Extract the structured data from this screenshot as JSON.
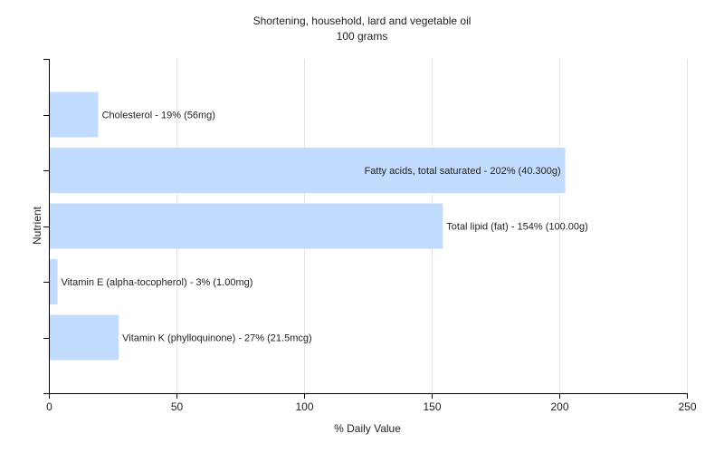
{
  "chart_data": {
    "type": "bar",
    "orientation": "horizontal",
    "title": "Shortening, household, lard and vegetable oil",
    "subtitle": "100 grams",
    "xlabel": "% Daily Value",
    "ylabel": "Nutrient",
    "xlim": [
      0,
      250
    ],
    "xticks": [
      0,
      50,
      100,
      150,
      200,
      250
    ],
    "grid": true,
    "bar_color": "#c2dcff",
    "categories": [
      "Cholesterol",
      "Fatty acids, total saturated",
      "Total lipid (fat)",
      "Vitamin E (alpha-tocopherol)",
      "Vitamin K (phylloquinone)"
    ],
    "values": [
      19,
      202,
      154,
      3,
      27
    ],
    "data_labels": [
      "Cholesterol - 19% (56mg)",
      "Fatty acids, total saturated - 202% (40.300g)",
      "Total lipid (fat) - 154% (100.00g)",
      "Vitamin E (alpha-tocopherol) - 3% (1.00mg)",
      "Vitamin K (phylloquinone) - 27% (21.5mcg)"
    ]
  }
}
